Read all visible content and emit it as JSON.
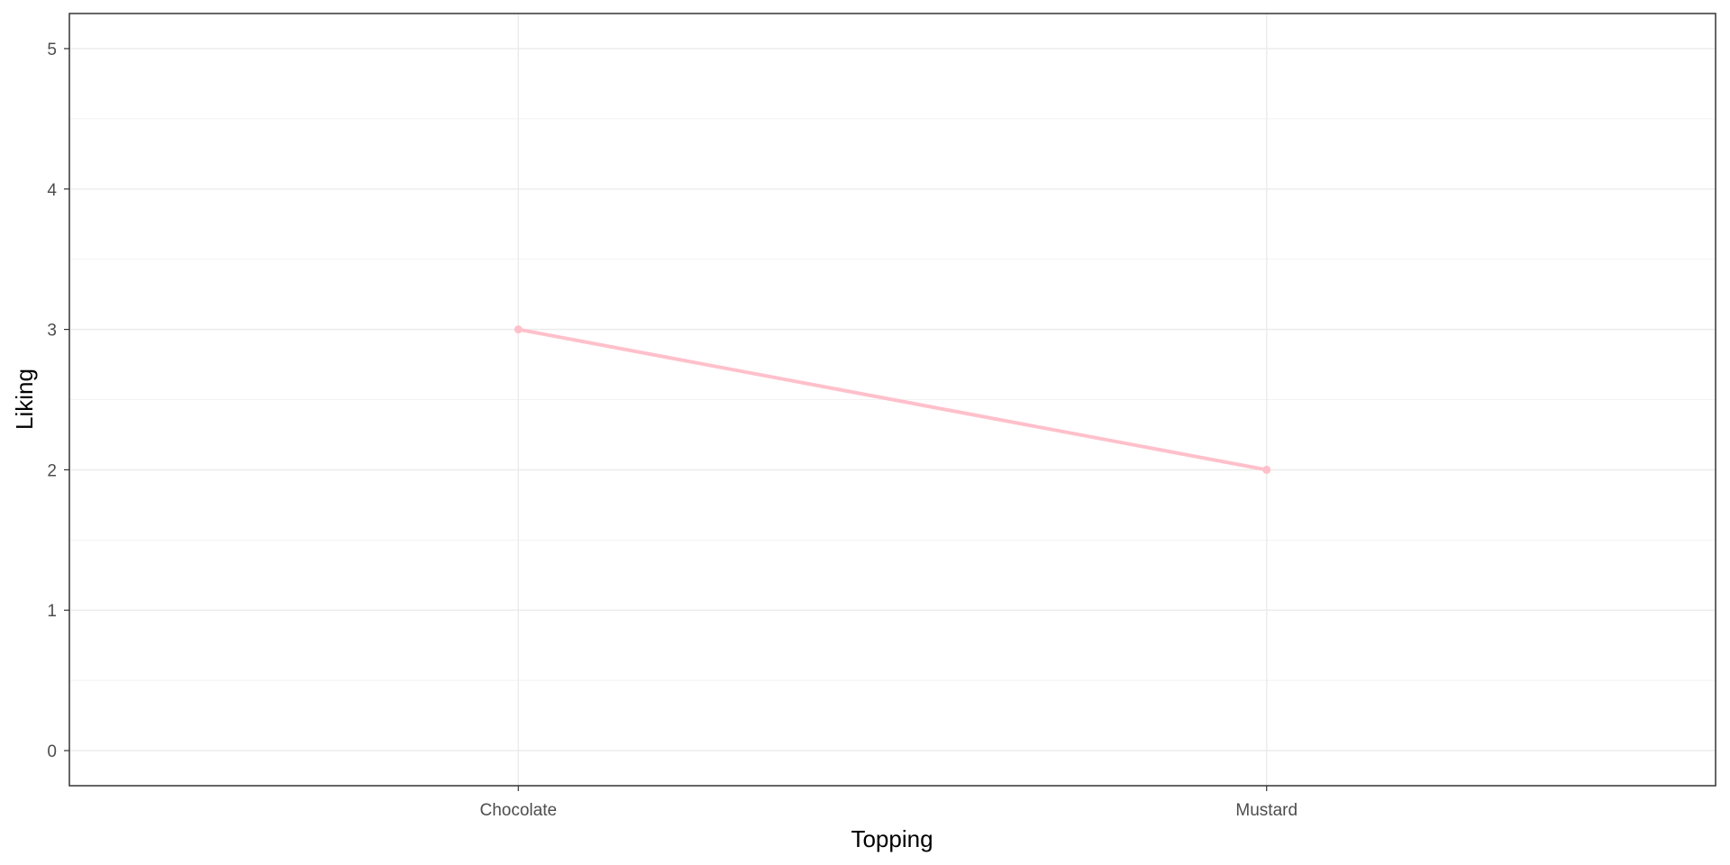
{
  "chart_data": {
    "type": "line",
    "title": "",
    "xlabel": "Topping",
    "ylabel": "Liking",
    "categories": [
      "Chocolate",
      "Mustard"
    ],
    "series": [
      {
        "values": [
          3,
          2
        ],
        "color": "#ffc0cb"
      }
    ],
    "ylim": [
      -0.25,
      5.25
    ],
    "yticks": [
      0,
      1,
      2,
      3,
      4,
      5
    ],
    "grid": true,
    "legend": "none"
  }
}
